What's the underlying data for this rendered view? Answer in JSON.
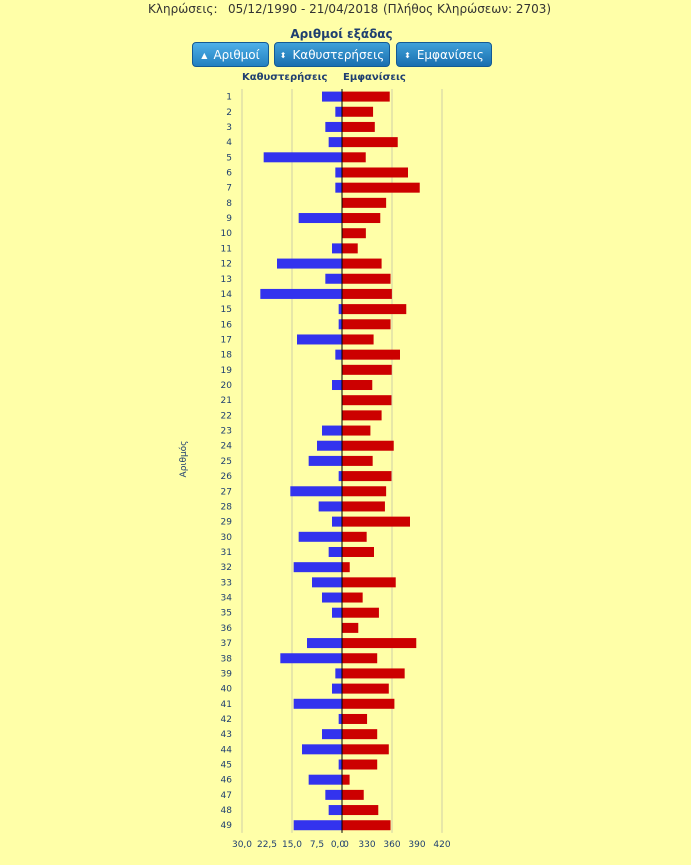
{
  "header": {
    "label": "Κληρώσεις:",
    "range": "05/12/1990 - 21/04/2018",
    "count": "(Πλήθος Κληρώσεων: 2703)"
  },
  "title": "Αριθμοί εξάδας",
  "buttons": [
    {
      "label": "Αριθμοί",
      "icon": "triangle-up-icon"
    },
    {
      "label": "Καθυστερήσεις",
      "icon": "sort-icon"
    },
    {
      "label": "Εμφανίσεις",
      "icon": "sort-icon"
    }
  ],
  "colors": {
    "delays": "#3333ee",
    "appearances": "#cc0000"
  },
  "chart_data": {
    "type": "bar",
    "orientation": "horizontal-diverging",
    "y_axis_title": "Αριθμός",
    "categories": [
      "1",
      "2",
      "3",
      "4",
      "5",
      "6",
      "7",
      "8",
      "9",
      "10",
      "11",
      "12",
      "13",
      "14",
      "15",
      "16",
      "17",
      "18",
      "19",
      "20",
      "21",
      "22",
      "23",
      "24",
      "25",
      "26",
      "27",
      "28",
      "29",
      "30",
      "31",
      "32",
      "33",
      "34",
      "35",
      "36",
      "37",
      "38",
      "39",
      "40",
      "41",
      "42",
      "43",
      "44",
      "45",
      "46",
      "47",
      "48",
      "49"
    ],
    "series": [
      {
        "name": "Καθυστερήσεις",
        "values": [
          6,
          2,
          5,
          4,
          23.5,
          2,
          2,
          0,
          13,
          0,
          3,
          19.5,
          5,
          24.5,
          1,
          1,
          13.5,
          2,
          0,
          3,
          0,
          0,
          6,
          7.5,
          10,
          1,
          15.5,
          7,
          3,
          13,
          4,
          14.5,
          9,
          6,
          3,
          0,
          10.5,
          18.5,
          2,
          3,
          14.5,
          1,
          6,
          12,
          1,
          10,
          5,
          4,
          14.5
        ],
        "axis_ticks": [
          "30,0",
          "22,5",
          "15,0",
          "7,5",
          "0,0"
        ],
        "axis_max": 30
      },
      {
        "name": "Εμφανίσεις",
        "values": [
          358,
          233,
          246,
          418,
          178,
          495,
          583,
          331,
          287,
          179,
          118,
          297,
          364,
          374,
          482,
          364,
          237,
          435,
          373,
          227,
          371,
          297,
          213,
          388,
          230,
          371,
          331,
          322,
          510,
          185,
          240,
          58,
          403,
          155,
          277,
          122,
          557,
          264,
          470,
          351,
          393,
          188,
          264,
          351,
          264,
          57,
          163,
          272,
          364
        ],
        "axis_ticks": [
          "0",
          "330",
          "360",
          "390",
          "420"
        ],
        "axis_max": 750
      }
    ]
  }
}
